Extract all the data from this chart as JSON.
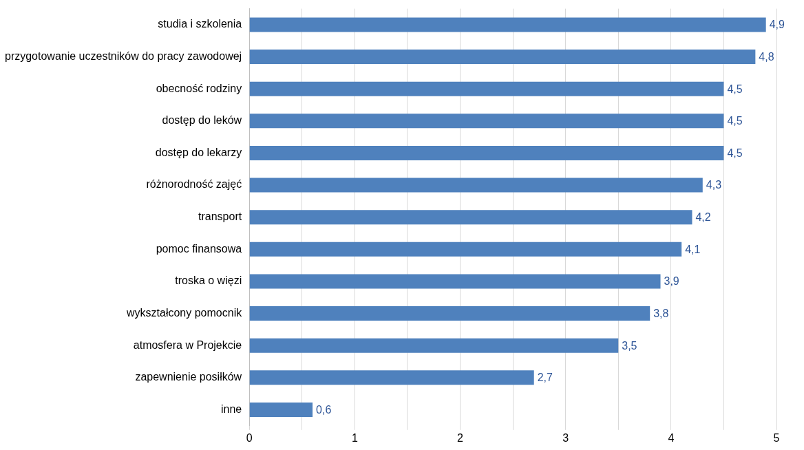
{
  "chart_data": {
    "type": "bar",
    "orientation": "horizontal",
    "categories": [
      "studia i szkolenia",
      "przygotowanie uczestników do pracy zawodowej",
      "obecność rodziny",
      "dostęp do leków",
      "dostęp do lekarzy",
      "różnorodność zajęć",
      "transport",
      "pomoc finansowa",
      "troska o więzi",
      "wykształcony pomocnik",
      "atmosfera w Projekcie",
      "zapewnienie posiłków",
      "inne"
    ],
    "values": [
      4.9,
      4.8,
      4.5,
      4.5,
      4.5,
      4.3,
      4.2,
      4.1,
      3.9,
      3.8,
      3.5,
      2.7,
      0.6
    ],
    "value_labels": [
      "4,9",
      "4,8",
      "4,5",
      "4,5",
      "4,5",
      "4,3",
      "4,2",
      "4,1",
      "3,9",
      "3,8",
      "3,5",
      "2,7",
      "0,6"
    ],
    "color": "#4f81bd",
    "xlim": [
      0,
      5
    ],
    "xticks": [
      0,
      {
        "value": 0.5,
        "label": null
      },
      1,
      {
        "value": 1.5,
        "label": null
      },
      2,
      {
        "value": 2.5,
        "label": null
      },
      3,
      {
        "value": 3.5,
        "label": null
      },
      4,
      {
        "value": 4.5,
        "label": null
      },
      5
    ],
    "grid": "x",
    "legend": false
  }
}
